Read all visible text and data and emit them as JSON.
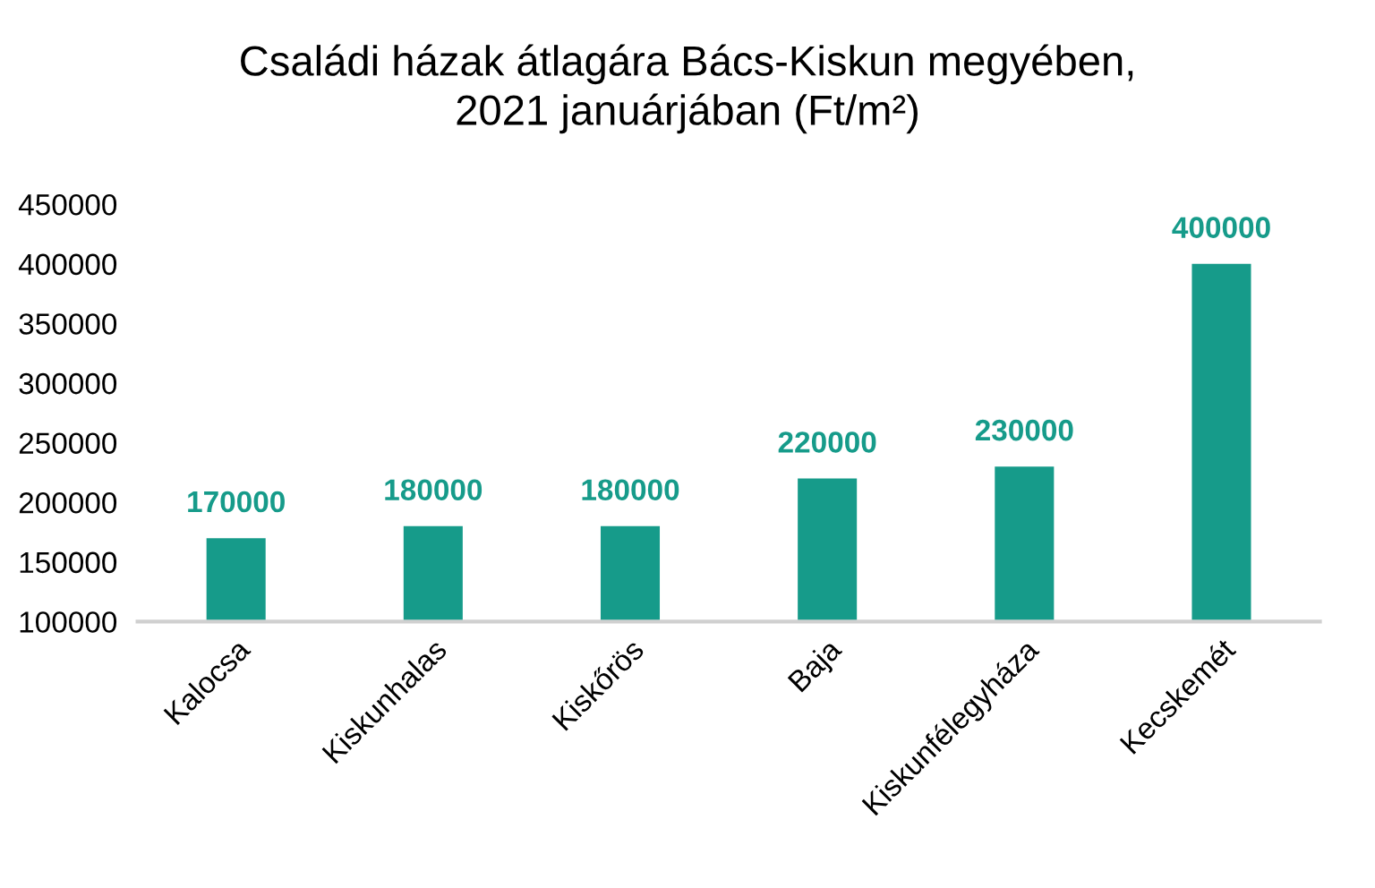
{
  "chart_data": {
    "type": "bar",
    "title": "Családi házak átlagára Bács-Kiskun megyében,\n2021 januárjában (Ft/m²)",
    "categories": [
      "Kalocsa",
      "Kiskunhalas",
      "Kiskőrös",
      "Baja",
      "Kiskunfélegyháza",
      "Kecskemét"
    ],
    "values": [
      170000,
      180000,
      180000,
      220000,
      230000,
      400000
    ],
    "color": "#169b8a",
    "ylim": [
      100000,
      450000
    ],
    "yticks": [
      100000,
      150000,
      200000,
      250000,
      300000,
      350000,
      400000,
      450000
    ],
    "grid": false,
    "data_labels": true
  }
}
